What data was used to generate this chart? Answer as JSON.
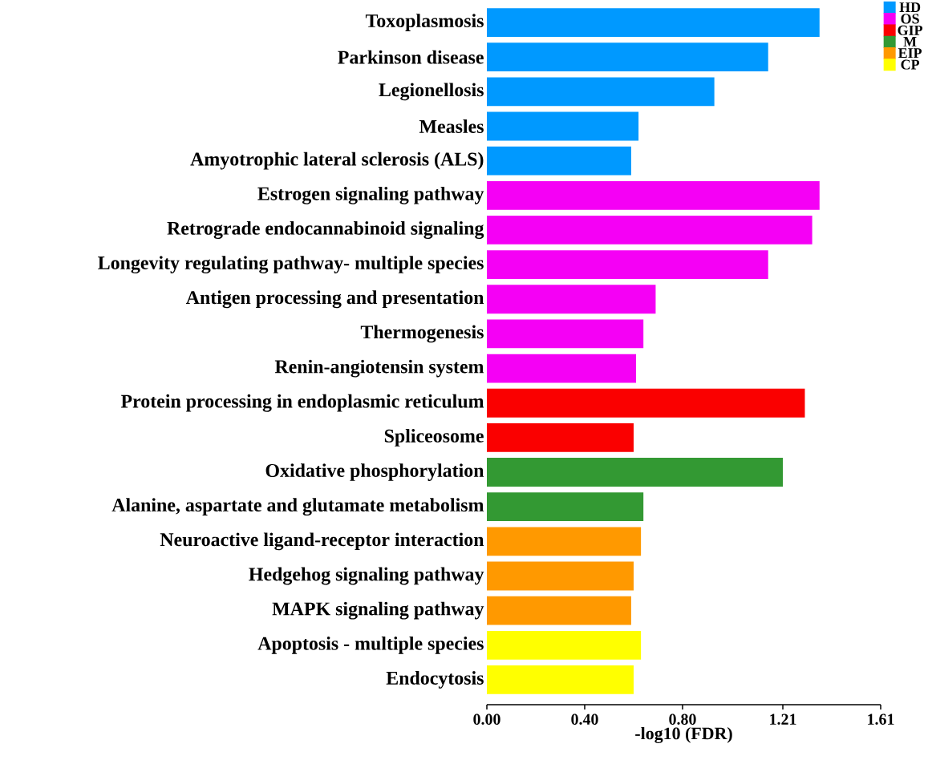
{
  "chart_data": {
    "type": "bar",
    "orientation": "horizontal",
    "xlabel": "-log10 (FDR)",
    "categories": [
      "Toxoplasmosis",
      "Parkinson disease",
      "Legionellosis",
      "Measles",
      "Amyotrophic lateral sclerosis (ALS)",
      "Estrogen signaling pathway",
      "Retrograde endocannabinoid signaling",
      "Longevity regulating pathway- multiple species",
      "Antigen processing and presentation",
      "Thermogenesis",
      "Renin-angiotensin system",
      "Protein processing in endoplasmic reticulum",
      "Spliceosome",
      "Oxidative phosphorylation",
      "Alanine, aspartate and glutamate metabolism",
      "Neuroactive ligand-receptor interaction",
      "Hedgehog signaling pathway",
      "MAPK signaling pathway",
      "Apoptosis - multiple species",
      "Endocytosis"
    ],
    "series": [
      {
        "name": "HD",
        "color": "#0099ff",
        "values": [
          1.36,
          1.15,
          0.93,
          0.62,
          0.59,
          null,
          null,
          null,
          null,
          null,
          null,
          null,
          null,
          null,
          null,
          null,
          null,
          null,
          null,
          null
        ]
      },
      {
        "name": "OS",
        "color": "#f500f5",
        "values": [
          null,
          null,
          null,
          null,
          null,
          1.36,
          1.33,
          1.15,
          0.69,
          0.64,
          0.61,
          null,
          null,
          null,
          null,
          null,
          null,
          null,
          null,
          null
        ]
      },
      {
        "name": "GIP",
        "color": "#fa0000",
        "values": [
          null,
          null,
          null,
          null,
          null,
          null,
          null,
          null,
          null,
          null,
          null,
          1.3,
          0.6,
          null,
          null,
          null,
          null,
          null,
          null,
          null
        ]
      },
      {
        "name": "M",
        "color": "#339933",
        "values": [
          null,
          null,
          null,
          null,
          null,
          null,
          null,
          null,
          null,
          null,
          null,
          null,
          null,
          1.21,
          0.64,
          null,
          null,
          null,
          null,
          null
        ]
      },
      {
        "name": "EIP",
        "color": "#ff9900",
        "values": [
          null,
          null,
          null,
          null,
          null,
          null,
          null,
          null,
          null,
          null,
          null,
          null,
          null,
          null,
          null,
          0.63,
          0.6,
          0.59,
          null,
          null
        ]
      },
      {
        "name": "CP",
        "color": "#ffff00",
        "values": [
          null,
          null,
          null,
          null,
          null,
          null,
          null,
          null,
          null,
          null,
          null,
          null,
          null,
          null,
          null,
          null,
          null,
          null,
          0.63,
          0.6
        ]
      }
    ],
    "xlim": [
      0,
      1.61
    ],
    "xticks": [
      {
        "value": 0,
        "label": "0.00"
      },
      {
        "value": 0.4,
        "label": "0.40"
      },
      {
        "value": 0.8,
        "label": "0.80"
      },
      1.21,
      1.61
    ],
    "legend": "top right"
  }
}
